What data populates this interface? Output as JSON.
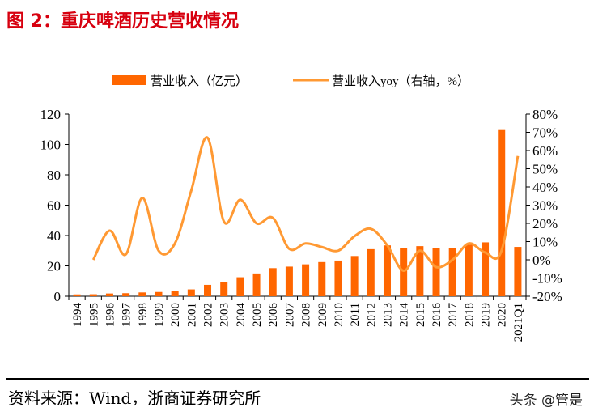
{
  "title": "图 2：重庆啤酒历史营收情况",
  "source": "资料来源：Wind，浙商证券研究所",
  "watermark": "头条 @管是",
  "colors": {
    "bar": "#ff6600",
    "line": "#ff9933",
    "title": "#d7000f"
  },
  "chart_data": {
    "type": "bar+line",
    "categories": [
      "1994",
      "1995",
      "1996",
      "1997",
      "1998",
      "1999",
      "2000",
      "2001",
      "2002",
      "2003",
      "2004",
      "2005",
      "2006",
      "2007",
      "2008",
      "2009",
      "2010",
      "2011",
      "2012",
      "2013",
      "2014",
      "2015",
      "2016",
      "2017",
      "2018",
      "2019",
      "2020",
      "2021Q1"
    ],
    "series": [
      {
        "name": "营业收入（亿元）",
        "type": "bar",
        "axis": "left",
        "values": [
          1.2,
          1.3,
          1.8,
          2.0,
          2.5,
          2.8,
          3.3,
          4.5,
          7.5,
          9.3,
          12.5,
          15,
          18.5,
          19.5,
          21,
          22.5,
          23.5,
          26.5,
          31,
          33.5,
          31.5,
          33,
          31.5,
          31.5,
          34,
          35.5,
          109.5,
          32.5
        ]
      },
      {
        "name": "营业收入yoy（右轴，%）",
        "type": "line",
        "axis": "right",
        "values": [
          null,
          0,
          16,
          3,
          34,
          5,
          9,
          38,
          67,
          21,
          33,
          20,
          23,
          6,
          9,
          7,
          5,
          13,
          17,
          8,
          -6,
          5,
          -4,
          0,
          9,
          4,
          5,
          57
        ]
      }
    ],
    "left_axis": {
      "min": 0,
      "max": 120,
      "ticks": [
        "0",
        "20",
        "40",
        "60",
        "80",
        "100",
        "120"
      ]
    },
    "right_axis": {
      "min": -20,
      "max": 80,
      "ticks": [
        "-20%",
        "-10%",
        "0%",
        "10%",
        "20%",
        "30%",
        "40%",
        "50%",
        "60%",
        "70%",
        "80%"
      ]
    },
    "legend_placement": "top",
    "grid": false
  }
}
